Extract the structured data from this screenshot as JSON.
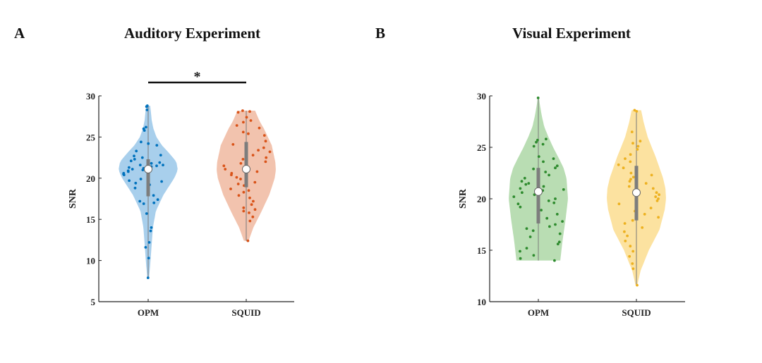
{
  "chart_data": [
    {
      "type": "violin",
      "panel_label": "A",
      "title": "Auditory Experiment",
      "ylabel": "SNR",
      "xlabel": "",
      "ylim": [
        5,
        30
      ],
      "yticks": [
        5,
        10,
        15,
        20,
        25,
        30
      ],
      "categories": [
        "OPM",
        "SQUID"
      ],
      "significance": {
        "between": [
          "OPM",
          "SQUID"
        ],
        "label": "*"
      },
      "series": [
        {
          "category": "OPM",
          "color": "#0072BD",
          "fill": "#A8CFEC",
          "median": 21.1,
          "q1": 17.8,
          "q3": 22.3,
          "min": 7.9,
          "max": 28.8,
          "points": [
            28.8,
            28.7,
            28.3,
            26.2,
            26.0,
            25.8,
            24.4,
            24.2,
            24.0,
            23.3,
            22.8,
            22.7,
            22.5,
            22.3,
            22.1,
            21.9,
            21.8,
            21.6,
            21.6,
            21.5,
            21.4,
            21.3,
            21.2,
            21.1,
            21.0,
            20.9,
            20.8,
            20.6,
            20.5,
            20.4,
            19.9,
            19.7,
            19.6,
            19.4,
            19.2,
            18.8,
            17.9,
            17.4,
            17.2,
            17.0,
            16.9,
            15.7,
            14.0,
            13.6,
            12.2,
            11.6,
            10.3,
            7.9
          ],
          "density": [
            [
              7.9,
              0.03
            ],
            [
              10,
              0.08
            ],
            [
              12,
              0.12
            ],
            [
              14,
              0.16
            ],
            [
              16,
              0.26
            ],
            [
              18,
              0.52
            ],
            [
              20,
              0.88
            ],
            [
              21,
              1.0
            ],
            [
              22,
              0.95
            ],
            [
              23,
              0.72
            ],
            [
              24,
              0.46
            ],
            [
              25,
              0.28
            ],
            [
              26,
              0.18
            ],
            [
              27,
              0.12
            ],
            [
              28.8,
              0.07
            ]
          ]
        },
        {
          "category": "SQUID",
          "color": "#D95319",
          "fill": "#F2C3AE",
          "median": 21.1,
          "q1": 18.9,
          "q3": 24.4,
          "min": 12.4,
          "max": 28.2,
          "points": [
            28.2,
            28.1,
            28.0,
            27.4,
            27.0,
            26.8,
            26.4,
            26.1,
            25.6,
            25.4,
            25.2,
            24.5,
            24.1,
            23.7,
            23.4,
            23.2,
            22.8,
            22.5,
            22.3,
            22.0,
            21.8,
            21.5,
            21.1,
            20.8,
            20.6,
            20.4,
            20.1,
            19.9,
            19.5,
            19.3,
            19.1,
            18.7,
            18.5,
            18.3,
            17.9,
            17.6,
            17.2,
            16.8,
            16.4,
            16.2,
            16.0,
            15.8,
            15.3,
            14.8,
            12.4
          ],
          "density": [
            [
              12.4,
              0.08
            ],
            [
              14,
              0.24
            ],
            [
              16,
              0.52
            ],
            [
              18,
              0.78
            ],
            [
              20,
              0.96
            ],
            [
              21,
              1.0
            ],
            [
              22,
              0.98
            ],
            [
              24,
              0.86
            ],
            [
              26,
              0.6
            ],
            [
              27,
              0.44
            ],
            [
              28.2,
              0.3
            ]
          ]
        }
      ]
    },
    {
      "type": "violin",
      "panel_label": "B",
      "title": "Visual Experiment",
      "ylabel": "SNR",
      "xlabel": "",
      "ylim": [
        10,
        30
      ],
      "yticks": [
        10,
        15,
        20,
        25,
        30
      ],
      "categories": [
        "OPM",
        "SQUID"
      ],
      "series": [
        {
          "category": "OPM",
          "color": "#2E8B2E",
          "fill": "#B9DDB3",
          "median": 20.7,
          "q1": 17.6,
          "q3": 23.0,
          "min": 14.0,
          "max": 29.8,
          "points": [
            29.8,
            25.8,
            25.7,
            25.5,
            25.3,
            25.1,
            24.1,
            23.9,
            23.6,
            23.2,
            23.0,
            22.9,
            22.6,
            22.3,
            22.0,
            21.7,
            21.5,
            21.4,
            21.2,
            21.0,
            20.9,
            20.8,
            20.6,
            20.4,
            20.2,
            20.0,
            19.8,
            19.6,
            19.5,
            19.2,
            18.9,
            18.5,
            18.1,
            17.8,
            17.5,
            17.3,
            17.1,
            16.9,
            16.6,
            16.3,
            15.8,
            15.6,
            15.2,
            14.9,
            14.5,
            14.2,
            14.0
          ],
          "density": [
            [
              14.0,
              0.74
            ],
            [
              15,
              0.78
            ],
            [
              16,
              0.82
            ],
            [
              18,
              0.92
            ],
            [
              20,
              1.0
            ],
            [
              22,
              0.95
            ],
            [
              23,
              0.85
            ],
            [
              24,
              0.68
            ],
            [
              25,
              0.5
            ],
            [
              26,
              0.34
            ],
            [
              27,
              0.2
            ],
            [
              28,
              0.12
            ],
            [
              29,
              0.06
            ],
            [
              29.8,
              0.02
            ]
          ]
        },
        {
          "category": "SQUID",
          "color": "#EDB120",
          "fill": "#FCE2A0",
          "median": 20.6,
          "q1": 17.9,
          "q3": 23.2,
          "min": 11.6,
          "max": 28.6,
          "points": [
            28.6,
            28.5,
            26.5,
            25.6,
            25.4,
            25.1,
            24.8,
            24.3,
            23.9,
            23.6,
            23.3,
            23.0,
            22.7,
            22.5,
            22.3,
            22.1,
            21.9,
            21.7,
            21.5,
            21.2,
            21.0,
            20.8,
            20.6,
            20.4,
            20.2,
            20.0,
            19.8,
            19.5,
            19.1,
            18.8,
            18.5,
            18.2,
            17.9,
            17.6,
            17.2,
            16.8,
            16.4,
            15.9,
            15.4,
            14.9,
            14.4,
            13.7,
            13.2,
            11.6
          ],
          "density": [
            [
              11.6,
              0.03
            ],
            [
              13,
              0.14
            ],
            [
              15,
              0.42
            ],
            [
              17,
              0.78
            ],
            [
              19,
              0.96
            ],
            [
              20,
              1.0
            ],
            [
              21,
              0.98
            ],
            [
              22,
              0.9
            ],
            [
              24,
              0.66
            ],
            [
              26,
              0.38
            ],
            [
              27.5,
              0.24
            ],
            [
              28.6,
              0.16
            ]
          ]
        }
      ]
    }
  ]
}
